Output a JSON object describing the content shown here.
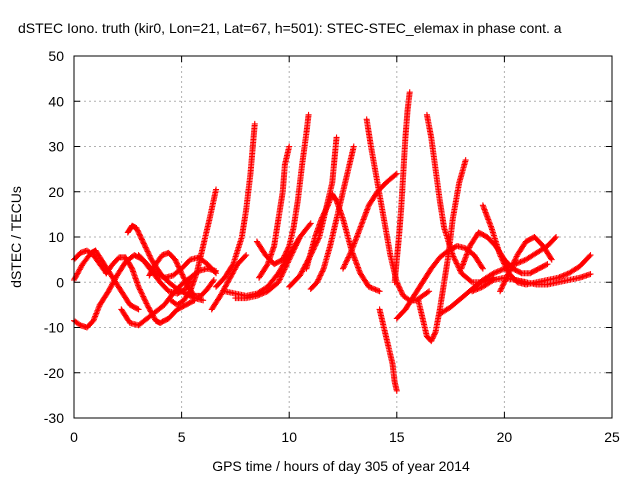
{
  "chart_data": {
    "type": "scatter",
    "title": "dSTEC Iono. truth (kir0, Lon=21, Lat=67, h=501): STEC-STEC_elemax in phase cont. a",
    "xlabel": "GPS time / hours of day 305 of year 2014",
    "ylabel": "dSTEC  / TECUs",
    "xlim": [
      0,
      25
    ],
    "ylim": [
      -30,
      50
    ],
    "xticks": [
      0,
      5,
      10,
      15,
      20,
      25
    ],
    "yticks": [
      -30,
      -20,
      -10,
      0,
      10,
      20,
      30,
      40,
      50
    ],
    "grid": true,
    "marker": "+",
    "marker_color": "#ff0000",
    "series": [
      {
        "x": [
          0.0,
          0.3,
          0.6,
          0.9,
          1.2
        ],
        "y": [
          -8.5,
          -9.5,
          -10.0,
          -8.5,
          -5.0
        ]
      },
      {
        "x": [
          1.2,
          1.6,
          2.0,
          2.4,
          2.8,
          3.2,
          3.6,
          4.0,
          4.4,
          4.8,
          5.2,
          5.4
        ],
        "y": [
          -5.0,
          -2.0,
          1.5,
          4.5,
          6.0,
          5.0,
          2.5,
          0.0,
          -2.0,
          -2.5,
          -1.5,
          0.5
        ]
      },
      {
        "x": [
          0.0,
          0.3,
          0.6,
          0.9,
          1.2,
          1.5
        ],
        "y": [
          5.0,
          6.5,
          7.0,
          6.0,
          4.0,
          2.0
        ]
      },
      {
        "x": [
          0.0,
          0.4,
          0.8,
          1.0
        ],
        "y": [
          0.5,
          4.0,
          6.5,
          7.0
        ]
      },
      {
        "x": [
          1.0,
          1.4,
          1.8,
          2.2,
          2.6,
          3.0
        ],
        "y": [
          7.0,
          4.0,
          1.0,
          -2.0,
          -5.0,
          -6.0
        ]
      },
      {
        "x": [
          1.5,
          1.8,
          2.1,
          2.4,
          2.7,
          3.0,
          3.4,
          3.8,
          4.0,
          4.4,
          4.8,
          5.2,
          5.6
        ],
        "y": [
          2.0,
          4.0,
          5.5,
          5.5,
          3.0,
          -1.0,
          -5.0,
          -8.5,
          -9.0,
          -8.0,
          -6.0,
          -5.0,
          -4.0
        ]
      },
      {
        "x": [
          2.2,
          2.6,
          3.0,
          3.4,
          3.8,
          4.2,
          4.6,
          5.0,
          5.4,
          5.8,
          6.2,
          6.6
        ],
        "y": [
          -6.0,
          -9.0,
          -9.5,
          -8.0,
          -6.5,
          -5.0,
          -2.5,
          -0.5,
          1.0,
          2.5,
          3.0,
          2.5
        ]
      },
      {
        "x": [
          2.5,
          2.7,
          2.9,
          3.1,
          3.3,
          3.6,
          4.0,
          4.4,
          4.8,
          5.2,
          5.6,
          6.0
        ],
        "y": [
          11.0,
          12.5,
          12.0,
          10.0,
          8.0,
          5.0,
          2.0,
          0.0,
          -1.5,
          -2.5,
          -3.5,
          -4.0
        ]
      },
      {
        "x": [
          3.0,
          3.4,
          3.8,
          4.2,
          4.6,
          5.0,
          5.4,
          5.8,
          6.2,
          6.6
        ],
        "y": [
          6.0,
          4.0,
          2.0,
          1.0,
          1.5,
          3.0,
          5.0,
          5.5,
          4.0,
          2.0
        ]
      },
      {
        "x": [
          3.5,
          3.8,
          4.1,
          4.4,
          4.7
        ],
        "y": [
          1.5,
          4.0,
          6.0,
          6.5,
          5.0
        ]
      },
      {
        "x": [
          4.7,
          5.0,
          5.3,
          5.6,
          5.9,
          6.2,
          6.5
        ],
        "y": [
          5.0,
          2.0,
          -1.0,
          -3.0,
          -3.0,
          -1.5,
          0.5
        ]
      },
      {
        "x": [
          4.5,
          4.8,
          5.1,
          5.4,
          5.7,
          6.0,
          6.3,
          6.6
        ],
        "y": [
          -4.0,
          -5.0,
          -4.0,
          -2.0,
          2.0,
          8.0,
          14.0,
          20.5
        ]
      },
      {
        "x": [
          6.4,
          6.8,
          7.2,
          7.6,
          8.0
        ],
        "y": [
          -6.0,
          -3.0,
          0.5,
          4.0,
          6.0
        ]
      },
      {
        "x": [
          6.6,
          7.0,
          7.4,
          7.8,
          8.0,
          8.2,
          8.4
        ],
        "y": [
          -1.0,
          1.0,
          4.0,
          10.0,
          16.0,
          24.0,
          35.0
        ]
      },
      {
        "x": [
          7.0,
          7.5,
          8.0,
          8.5,
          9.0,
          9.5,
          10.0,
          10.5,
          11.0
        ],
        "y": [
          -2.0,
          -2.5,
          -3.0,
          -2.5,
          -1.0,
          2.0,
          6.0,
          10.0,
          13.0
        ]
      },
      {
        "x": [
          7.5,
          8.0,
          8.5,
          9.0,
          9.5,
          10.0,
          10.5
        ],
        "y": [
          -3.5,
          -3.5,
          -3.0,
          -2.0,
          0.0,
          5.0,
          10.0
        ]
      },
      {
        "x": [
          8.5,
          8.9,
          9.3,
          9.7,
          10.0,
          10.2,
          10.4,
          10.6,
          10.8,
          10.9
        ],
        "y": [
          9.0,
          6.0,
          4.0,
          5.0,
          8.0,
          12.0,
          18.0,
          26.0,
          33.0,
          37.0
        ]
      },
      {
        "x": [
          8.6,
          9.0,
          9.3,
          9.5,
          9.7,
          9.8,
          10.0
        ],
        "y": [
          1.0,
          4.0,
          8.0,
          14.0,
          20.0,
          26.0,
          30.0
        ]
      },
      {
        "x": [
          10.0,
          10.5,
          11.0,
          11.4,
          11.7,
          12.0,
          12.1,
          12.2
        ],
        "y": [
          -1.0,
          1.5,
          6.0,
          10.0,
          16.0,
          22.0,
          27.0,
          32.0
        ]
      },
      {
        "x": [
          10.8,
          11.2,
          11.5,
          11.8,
          12.0,
          12.2,
          12.5,
          12.9,
          13.3,
          13.7,
          14.2
        ],
        "y": [
          3.0,
          10.0,
          14.0,
          17.0,
          19.5,
          18.0,
          14.0,
          7.0,
          2.0,
          -1.0,
          -2.0
        ]
      },
      {
        "x": [
          11.0,
          11.3,
          11.6,
          11.9,
          12.2,
          12.5,
          12.8,
          13.0
        ],
        "y": [
          -1.5,
          0.0,
          3.0,
          8.0,
          14.0,
          20.0,
          26.0,
          30.0
        ]
      },
      {
        "x": [
          12.5,
          12.9,
          13.3,
          13.7,
          14.1,
          14.5,
          15.0
        ],
        "y": [
          3.0,
          7.0,
          12.0,
          17.0,
          20.0,
          22.0,
          24.0
        ]
      },
      {
        "x": [
          13.6,
          13.8,
          14.1,
          14.4,
          14.7,
          15.0,
          15.3,
          15.6,
          15.9,
          16.2,
          16.5
        ],
        "y": [
          36.0,
          30.0,
          22.0,
          14.0,
          6.0,
          0.0,
          -3.0,
          -4.0,
          -4.0,
          -3.0,
          -2.0
        ]
      },
      {
        "x": [
          14.2,
          14.4,
          14.6,
          14.8,
          14.9,
          15.0
        ],
        "y": [
          -6.0,
          -10.0,
          -14.0,
          -18.0,
          -22.0,
          -24.0
        ]
      },
      {
        "x": [
          14.9,
          15.0,
          15.1,
          15.2,
          15.3,
          15.4,
          15.5,
          15.6
        ],
        "y": [
          0.0,
          5.0,
          10.0,
          16.0,
          24.0,
          32.0,
          38.0,
          42.0
        ]
      },
      {
        "x": [
          15.0,
          15.4,
          15.8,
          16.2,
          16.6,
          17.0,
          17.4,
          17.8,
          18.2,
          18.6,
          19.0
        ],
        "y": [
          -8.0,
          -6.0,
          -3.0,
          0.0,
          3.0,
          5.5,
          7.0,
          8.0,
          7.5,
          6.0,
          3.0
        ]
      },
      {
        "x": [
          16.0,
          16.2,
          16.4,
          16.6,
          16.8,
          17.0,
          17.2,
          17.4,
          17.6,
          17.9,
          18.2
        ],
        "y": [
          -4.0,
          -8.0,
          -12.0,
          -13.0,
          -11.0,
          -6.0,
          0.0,
          6.0,
          14.0,
          22.0,
          27.0
        ]
      },
      {
        "x": [
          16.4,
          16.6,
          16.8,
          17.0,
          17.2,
          17.6,
          18.0,
          18.5,
          19.0,
          19.5
        ],
        "y": [
          37.0,
          32.0,
          25.0,
          18.0,
          12.0,
          6.0,
          2.0,
          0.0,
          0.0,
          1.0
        ]
      },
      {
        "x": [
          17.0,
          17.5,
          18.0,
          18.5,
          19.0,
          19.5,
          20.0,
          20.5,
          21.0,
          21.5,
          22.0,
          22.4
        ],
        "y": [
          -7.0,
          -5.5,
          -3.5,
          -1.5,
          0.5,
          2.0,
          3.0,
          4.0,
          5.0,
          6.5,
          8.0,
          10.0
        ]
      },
      {
        "x": [
          18.0,
          18.4,
          18.8,
          19.2,
          19.6,
          20.0,
          20.4,
          20.8,
          21.2,
          21.6,
          22.0
        ],
        "y": [
          3.0,
          8.0,
          11.0,
          10.0,
          8.0,
          5.0,
          3.0,
          2.0,
          2.0,
          3.0,
          4.0
        ]
      },
      {
        "x": [
          19.0,
          19.4,
          19.8,
          20.2,
          20.6,
          21.0,
          21.5,
          22.0,
          22.5,
          23.0,
          23.5,
          24.0
        ],
        "y": [
          17.0,
          12.0,
          6.0,
          2.0,
          0.0,
          -0.5,
          0.0,
          0.5,
          1.0,
          2.0,
          3.5,
          6.0
        ]
      },
      {
        "x": [
          19.8,
          20.2,
          20.6,
          21.0,
          21.4,
          21.8,
          22.2
        ],
        "y": [
          -2.0,
          2.0,
          6.0,
          9.0,
          10.0,
          8.0,
          5.0
        ]
      },
      {
        "x": [
          20.5,
          21.0,
          21.5,
          22.0,
          22.5,
          23.0,
          23.5,
          24.0
        ],
        "y": [
          0.5,
          0.0,
          -0.5,
          -0.5,
          0.0,
          0.5,
          1.0,
          1.8
        ]
      },
      {
        "x": [
          18.5,
          19.0,
          19.5,
          20.0,
          20.5,
          21.0
        ],
        "y": [
          -2.0,
          -1.0,
          0.5,
          1.0,
          0.5,
          0.0
        ]
      }
    ]
  }
}
